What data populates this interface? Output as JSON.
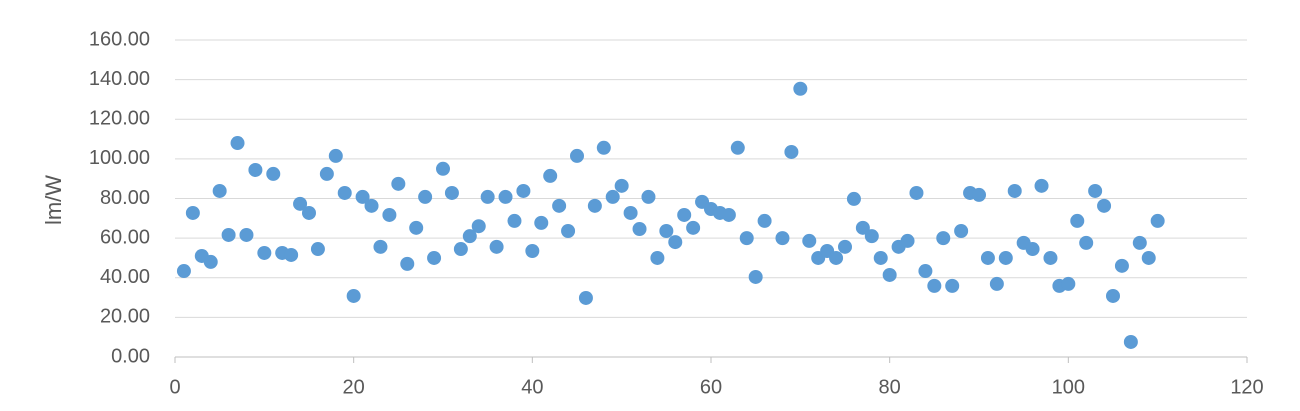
{
  "chart_data": {
    "type": "scatter",
    "y_label": "lm/W",
    "x": [
      1,
      2,
      3,
      4,
      5,
      6,
      7,
      8,
      9,
      10,
      11,
      12,
      13,
      14,
      15,
      16,
      17,
      18,
      19,
      20,
      21,
      22,
      23,
      24,
      25,
      26,
      27,
      28,
      29,
      30,
      31,
      32,
      33,
      34,
      35,
      36,
      37,
      38,
      39,
      40,
      41,
      42,
      43,
      44,
      45,
      46,
      47,
      48,
      49,
      50,
      51,
      52,
      53,
      54,
      55,
      56,
      57,
      58,
      59,
      60,
      61,
      62,
      63,
      64,
      65,
      66,
      68,
      69,
      70,
      71,
      72,
      73,
      74,
      75,
      76,
      77,
      78,
      79,
      80,
      81,
      82,
      83,
      84,
      85,
      86,
      87,
      88,
      89,
      90,
      91,
      92,
      93,
      94,
      95,
      96,
      97,
      98,
      99,
      100,
      101,
      102,
      103,
      104,
      105,
      106,
      107,
      108,
      109,
      110
    ],
    "values": [
      43.4,
      72.7,
      51,
      48,
      83.8,
      61.6,
      108,
      61.6,
      94.4,
      52.5,
      92.4,
      52.5,
      51.5,
      77.3,
      72.7,
      54.5,
      92.4,
      101.5,
      82.8,
      30.8,
      80.8,
      76.3,
      55.6,
      71.7,
      87.4,
      47,
      65.2,
      80.8,
      50,
      95,
      82.8,
      54.5,
      61,
      66,
      80.8,
      55.6,
      80.8,
      68.7,
      83.8,
      53.5,
      67.7,
      91.4,
      76.3,
      63.6,
      101.5,
      29.8,
      76.3,
      105.6,
      80.8,
      86.4,
      72.7,
      64.6,
      80.8,
      50,
      63.6,
      58,
      71.7,
      65.2,
      78.3,
      74.7,
      72.7,
      71.7,
      105.6,
      60,
      40.4,
      68.7,
      60,
      103.5,
      135.4,
      58.6,
      50,
      53.5,
      50,
      55.6,
      79.8,
      65.2,
      61,
      50,
      41.4,
      55.6,
      58.6,
      82.8,
      43.4,
      35.9,
      60,
      35.9,
      63.6,
      82.8,
      81.8,
      50,
      36.9,
      50,
      83.8,
      57.6,
      54.5,
      86.4,
      50,
      35.9,
      36.9,
      68.7,
      57.6,
      83.8,
      76.3,
      30.8,
      46,
      7.6,
      57.6,
      50,
      68.7
    ],
    "color": "#5b9bd5",
    "xlim": [
      0,
      120
    ],
    "xticks": [
      0,
      20,
      40,
      60,
      80,
      100,
      120
    ],
    "ylim": [
      0,
      160
    ],
    "yticks": [
      {
        "value": 0,
        "label": "0.00"
      },
      {
        "value": 20,
        "label": "20.00"
      },
      {
        "value": 40,
        "label": "40.00"
      },
      {
        "value": 60,
        "label": "60.00"
      },
      {
        "value": 80,
        "label": "80.00"
      },
      {
        "value": 100,
        "label": "100.00"
      },
      {
        "value": 120,
        "label": "120.00"
      },
      {
        "value": 140,
        "label": "140.00"
      },
      {
        "value": 160,
        "label": "160.00"
      }
    ],
    "grid": true
  }
}
